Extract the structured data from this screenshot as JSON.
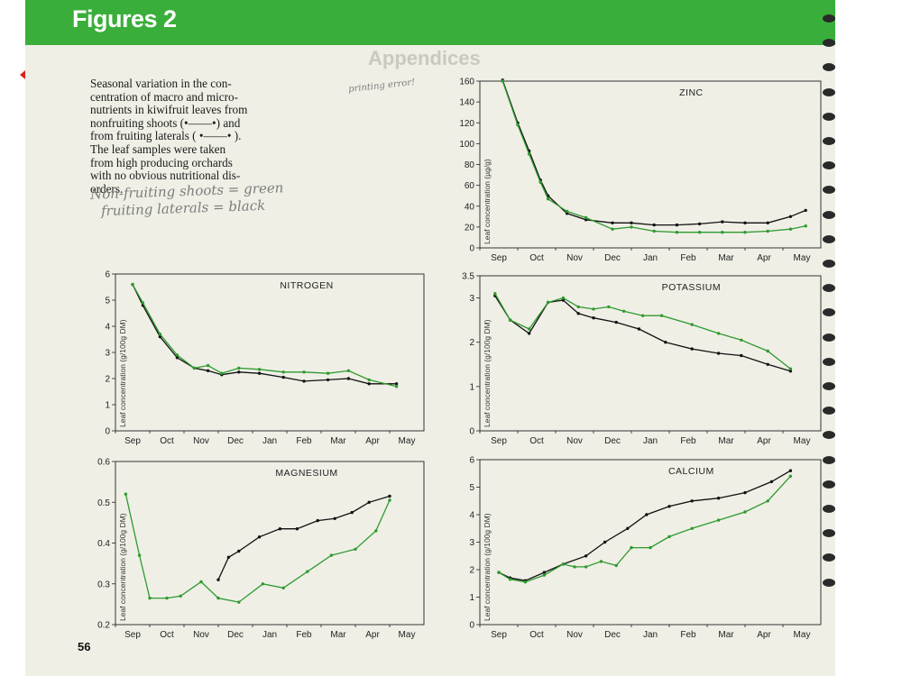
{
  "page": {
    "header_title": "Figures 2",
    "page_number": "56",
    "ghost_heading": "Appendices",
    "caption_lines": [
      "Seasonal variation in the con-",
      "centration of macro and micro-",
      "nutrients in kiwifruit leaves from",
      "nonfruiting shoots (•——•) and",
      "from fruiting laterals ( •——• ).",
      "The leaf samples were taken",
      "from high producing orchards",
      "with no obvious nutritional dis-",
      "orders."
    ],
    "handwritten_note_1": "Non-fruiting shoots = green",
    "handwritten_note_2": "fruiting laterals = black",
    "handwritten_note_3": "printing error!",
    "colors": {
      "header": "#3aae3a",
      "green_series": "#2e9a2e",
      "black_series": "#111111",
      "paper": "#efefe6"
    }
  },
  "chart_data": [
    {
      "id": "zinc",
      "type": "line",
      "title": "ZINC",
      "ylabel": "Leaf concentration (µg/g)",
      "ylim": [
        0,
        160
      ],
      "yticks": [
        0,
        20,
        40,
        60,
        80,
        100,
        120,
        140,
        160
      ],
      "xlabels": [
        "Sep",
        "Oct",
        "Nov",
        "Dec",
        "Jan",
        "Feb",
        "Mar",
        "Apr",
        "May"
      ],
      "series": [
        {
          "name": "black",
          "color": "#111111",
          "x": [
            0.6,
            1.0,
            1.3,
            1.6,
            1.8,
            2.3,
            2.8,
            3.5,
            4.0,
            4.6,
            5.2,
            5.8,
            6.4,
            7.0,
            7.6,
            8.2,
            8.6
          ],
          "y": [
            161,
            120,
            93,
            65,
            50,
            33,
            27,
            24,
            24,
            22,
            22,
            23,
            25,
            24,
            24,
            30,
            36
          ]
        },
        {
          "name": "green",
          "color": "#2e9a2e",
          "x": [
            0.6,
            1.0,
            1.3,
            1.6,
            1.8,
            2.3,
            2.8,
            3.5,
            4.0,
            4.6,
            5.2,
            5.8,
            6.4,
            7.0,
            7.6,
            8.2,
            8.6
          ],
          "y": [
            160,
            118,
            90,
            63,
            47,
            35,
            29,
            18,
            20,
            16,
            15,
            15,
            15,
            15,
            16,
            18,
            21
          ]
        }
      ]
    },
    {
      "id": "nitrogen",
      "type": "line",
      "title": "NITROGEN",
      "ylabel": "Leaf concentration (g/100g DM)",
      "ylim": [
        0,
        6
      ],
      "yticks": [
        0,
        1,
        2,
        3,
        4,
        5,
        6
      ],
      "xlabels": [
        "Sep",
        "Oct",
        "Nov",
        "Dec",
        "Jan",
        "Feb",
        "Mar",
        "Apr",
        "May"
      ],
      "series": [
        {
          "name": "black",
          "color": "#111111",
          "x": [
            0.5,
            0.8,
            1.3,
            1.8,
            2.3,
            2.7,
            3.1,
            3.6,
            4.2,
            4.9,
            5.5,
            6.2,
            6.8,
            7.4,
            8.2
          ],
          "y": [
            5.6,
            4.8,
            3.6,
            2.8,
            2.4,
            2.3,
            2.15,
            2.25,
            2.2,
            2.05,
            1.9,
            1.95,
            2.0,
            1.8,
            1.8
          ]
        },
        {
          "name": "green",
          "color": "#2e9a2e",
          "x": [
            0.5,
            0.8,
            1.3,
            1.8,
            2.3,
            2.7,
            3.1,
            3.6,
            4.2,
            4.9,
            5.5,
            6.2,
            6.8,
            7.4,
            8.2
          ],
          "y": [
            5.6,
            4.9,
            3.7,
            2.9,
            2.4,
            2.5,
            2.2,
            2.4,
            2.35,
            2.25,
            2.25,
            2.2,
            2.3,
            1.95,
            1.7
          ]
        }
      ]
    },
    {
      "id": "potassium",
      "type": "line",
      "title": "POTASSIUM",
      "ylabel": "Leaf concentration (g/100g DM)",
      "ylim": [
        0,
        3.5
      ],
      "yticks": [
        0,
        1,
        2,
        3,
        3.5
      ],
      "xlabels": [
        "Sep",
        "Oct",
        "Nov",
        "Dec",
        "Jan",
        "Feb",
        "Mar",
        "Apr",
        "May"
      ],
      "series": [
        {
          "name": "black",
          "color": "#111111",
          "x": [
            0.4,
            0.8,
            1.3,
            1.8,
            2.2,
            2.6,
            3.0,
            3.6,
            4.2,
            4.9,
            5.6,
            6.3,
            6.9,
            7.6,
            8.2
          ],
          "y": [
            3.05,
            2.5,
            2.2,
            2.9,
            2.95,
            2.65,
            2.55,
            2.45,
            2.3,
            2.0,
            1.85,
            1.75,
            1.7,
            1.5,
            1.35
          ]
        },
        {
          "name": "green",
          "color": "#2e9a2e",
          "x": [
            0.4,
            0.8,
            1.3,
            1.8,
            2.2,
            2.6,
            3.0,
            3.4,
            3.8,
            4.3,
            4.8,
            5.6,
            6.3,
            6.9,
            7.6,
            8.2
          ],
          "y": [
            3.1,
            2.5,
            2.3,
            2.9,
            3.0,
            2.8,
            2.75,
            2.8,
            2.7,
            2.6,
            2.6,
            2.4,
            2.2,
            2.05,
            1.8,
            1.4
          ]
        }
      ]
    },
    {
      "id": "magnesium",
      "type": "line",
      "title": "MAGNESIUM",
      "ylabel": "Leaf concentration (g/100g DM)",
      "ylim": [
        0.2,
        0.6
      ],
      "yticks": [
        0.2,
        0.3,
        0.4,
        0.5,
        0.6
      ],
      "xlabels": [
        "Sep",
        "Oct",
        "Nov",
        "Dec",
        "Jan",
        "Feb",
        "Mar",
        "Apr",
        "May"
      ],
      "series": [
        {
          "name": "black",
          "color": "#111111",
          "x": [
            3.0,
            3.3,
            3.6,
            4.2,
            4.8,
            5.3,
            5.9,
            6.4,
            6.9,
            7.4,
            8.0
          ],
          "y": [
            0.31,
            0.365,
            0.38,
            0.415,
            0.435,
            0.435,
            0.455,
            0.46,
            0.475,
            0.5,
            0.515
          ]
        },
        {
          "name": "green",
          "color": "#2e9a2e",
          "x": [
            0.3,
            0.7,
            1.0,
            1.5,
            1.9,
            2.5,
            3.0,
            3.6,
            4.3,
            4.9,
            5.6,
            6.3,
            7.0,
            7.6,
            8.0
          ],
          "y": [
            0.52,
            0.37,
            0.265,
            0.265,
            0.27,
            0.305,
            0.265,
            0.255,
            0.3,
            0.29,
            0.33,
            0.37,
            0.385,
            0.43,
            0.505
          ]
        }
      ]
    },
    {
      "id": "calcium",
      "type": "line",
      "title": "CALCIUM",
      "ylabel": "Leaf concentration (g/100g DM)",
      "ylim": [
        0,
        6
      ],
      "yticks": [
        0,
        1,
        2,
        3,
        4,
        5,
        6
      ],
      "xlabels": [
        "Sep",
        "Oct",
        "Nov",
        "Dec",
        "Jan",
        "Feb",
        "Mar",
        "Apr",
        "May"
      ],
      "series": [
        {
          "name": "black",
          "color": "#111111",
          "x": [
            0.5,
            0.8,
            1.2,
            1.7,
            2.2,
            2.8,
            3.3,
            3.9,
            4.4,
            5.0,
            5.6,
            6.3,
            7.0,
            7.7,
            8.2
          ],
          "y": [
            1.9,
            1.7,
            1.6,
            1.9,
            2.2,
            2.5,
            3.0,
            3.5,
            4.0,
            4.3,
            4.5,
            4.6,
            4.8,
            5.2,
            5.6
          ]
        },
        {
          "name": "green",
          "color": "#2e9a2e",
          "x": [
            0.5,
            0.8,
            1.2,
            1.7,
            2.2,
            2.5,
            2.8,
            3.2,
            3.6,
            4.0,
            4.5,
            5.0,
            5.6,
            6.3,
            7.0,
            7.6,
            8.2
          ],
          "y": [
            1.9,
            1.65,
            1.55,
            1.8,
            2.2,
            2.1,
            2.1,
            2.3,
            2.15,
            2.8,
            2.8,
            3.2,
            3.5,
            3.8,
            4.1,
            4.5,
            5.4
          ]
        }
      ]
    }
  ]
}
